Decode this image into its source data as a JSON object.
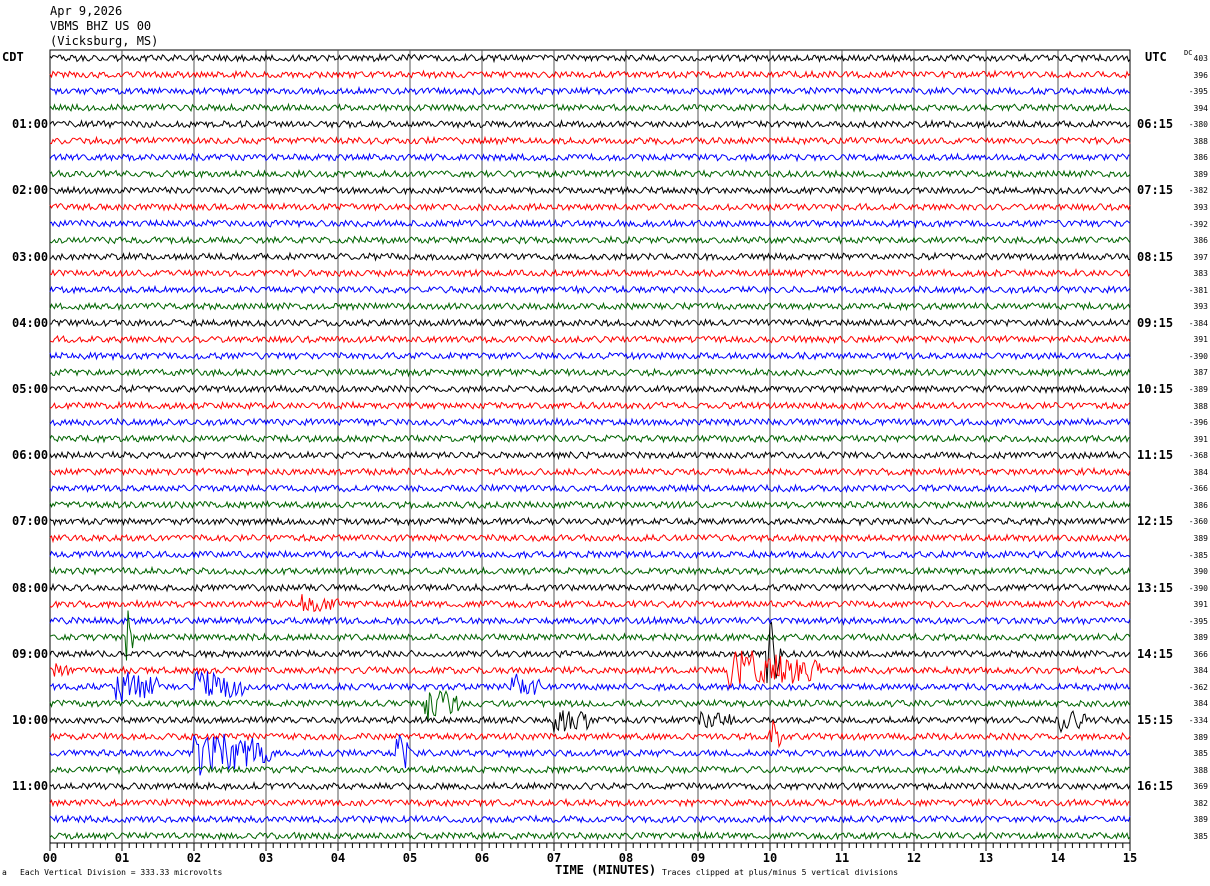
{
  "header": {
    "date": "Apr 9,2026",
    "station": "VBMS BHZ US 00",
    "location": "(Vicksburg, MS)"
  },
  "left_tz": "CDT",
  "right_tz": "UTC",
  "dc_label": "DC",
  "left_hours": [
    "01:00",
    "02:00",
    "03:00",
    "04:00",
    "05:00",
    "06:00",
    "07:00",
    "08:00",
    "09:00",
    "10:00",
    "11:00"
  ],
  "right_hours": [
    "06:15",
    "07:15",
    "08:15",
    "09:15",
    "10:15",
    "11:15",
    "12:15",
    "13:15",
    "14:15",
    "15:15",
    "16:15"
  ],
  "dc_values": [
    "403",
    "396",
    "-395",
    "394",
    "-380",
    "388",
    "386",
    "389",
    "-382",
    "393",
    "-392",
    "386",
    "397",
    "383",
    "-381",
    "393",
    "-384",
    "391",
    "-390",
    "387",
    "-389",
    "388",
    "-396",
    "391",
    "-368",
    "384",
    "-366",
    "386",
    "-360",
    "389",
    "-385",
    "390",
    "-390",
    "391",
    "-395",
    "389",
    "366",
    "384",
    "-362",
    "384",
    "-334",
    "389",
    "385",
    "388",
    "369",
    "382",
    "389",
    "385"
  ],
  "footer": {
    "scale": "Each Vertical Division =  333.33 microvolts",
    "xlabel": "TIME (MINUTES)",
    "clip": "Traces clipped at plus/minus 5 vertical divisions",
    "corner": "a"
  },
  "chart_data": {
    "type": "line",
    "title": "VBMS BHZ US 00 (Vicksburg, MS) Apr 9,2026",
    "xlabel": "TIME (MINUTES)",
    "xlim": [
      0,
      15
    ],
    "x_ticks": [
      "00",
      "01",
      "02",
      "03",
      "04",
      "05",
      "06",
      "07",
      "08",
      "09",
      "10",
      "11",
      "12",
      "13",
      "14",
      "15"
    ],
    "rows": 48,
    "minutes_per_row": 15,
    "trace_colors": [
      "#000000",
      "#ff0000",
      "#0000ff",
      "#006400"
    ],
    "grid": true,
    "events": [
      {
        "row": 33,
        "start": 3.5,
        "end": 4.0,
        "amp": 0.6
      },
      {
        "row": 35,
        "start": 1.05,
        "end": 1.15,
        "amp": 2.2
      },
      {
        "row": 36,
        "start": 9.95,
        "end": 10.15,
        "amp": 3.2
      },
      {
        "row": 37,
        "start": 9.4,
        "end": 10.7,
        "amp": 1.4
      },
      {
        "row": 38,
        "start": 0.9,
        "end": 1.5,
        "amp": 1.1
      },
      {
        "row": 38,
        "start": 2.0,
        "end": 2.7,
        "amp": 1.1
      },
      {
        "row": 38,
        "start": 6.4,
        "end": 6.8,
        "amp": 0.8
      },
      {
        "row": 39,
        "start": 5.2,
        "end": 5.7,
        "amp": 1.3
      },
      {
        "row": 40,
        "start": 7.0,
        "end": 7.5,
        "amp": 1.0
      },
      {
        "row": 40,
        "start": 9.0,
        "end": 9.5,
        "amp": 0.5
      },
      {
        "row": 40,
        "start": 14.0,
        "end": 14.4,
        "amp": 0.7
      },
      {
        "row": 41,
        "start": 10.0,
        "end": 10.15,
        "amp": 1.2
      },
      {
        "row": 42,
        "start": 2.0,
        "end": 3.1,
        "amp": 1.6
      },
      {
        "row": 42,
        "start": 4.8,
        "end": 5.0,
        "amp": 2.0
      },
      {
        "row": 37,
        "start": 0.05,
        "end": 0.3,
        "amp": 0.4
      }
    ]
  }
}
